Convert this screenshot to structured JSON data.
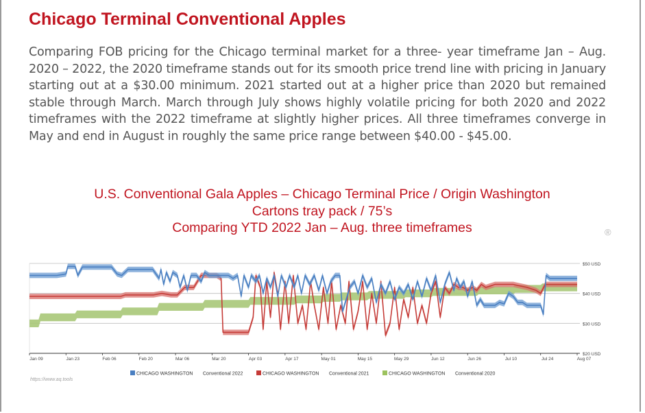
{
  "article": {
    "heading": "Chicago Terminal Conventional Apples",
    "paragraph": "Comparing FOB pricing for the Chicago terminal market for a three- year timeframe Jan – Aug. 2020 – 2022, the 2020 timeframe stands out for its smooth price trend line with pricing in January starting out at a $30.00 minimum.  2021 started out at a higher price than 2020 but remained stable through March.   March through July shows highly volatile pricing for both 2020 and 2022 timeframes with the 2022 timeframe at slightly higher prices.  All three timeframes converge in May and end in August in roughly the same price range between $40.00 - $45.00."
  },
  "chart": {
    "title_lines": [
      "U.S. Conventional Gala Apples – Chicago Terminal Price / Origin Washington",
      "Cartons tray pack / 75’s",
      "Comparing YTD 2022 Jan – Aug. three timeframes"
    ],
    "registered_mark": "®",
    "source": "https://www.aq.tools",
    "colors": {
      "conventional_2022": "#4a7fc1",
      "conventional_2022_fill": "#6b9bd2",
      "conventional_2021": "#c53b37",
      "conventional_2021_fill": "#d9706c",
      "conventional_2020": "#9cc25e",
      "conventional_2020_fill": "#a9c878"
    }
  },
  "chart_data": {
    "type": "area",
    "title": "U.S. Conventional Gala Apples – Chicago Terminal Price / Origin Washington",
    "subtitle": "Cartons tray pack / 75’s — Comparing YTD 2022 Jan – Aug. three timeframes",
    "x_ticks": [
      "Jan 09",
      "Jan 23",
      "Feb 06",
      "Feb 20",
      "Mar 06",
      "Mar 20",
      "Apr 03",
      "Apr 17",
      "May 01",
      "May 15",
      "May 29",
      "Jun 12",
      "Jun 26",
      "Jul 10",
      "Jul 24",
      "Aug 07"
    ],
    "y_ticks": [
      "$20 USD",
      "$30 USD",
      "$40 USD",
      "$50 USD"
    ],
    "ylim": [
      20,
      50
    ],
    "y_axis_side": "right",
    "grid": true,
    "legend_position": "bottom",
    "series": [
      {
        "key": "conventional_2022",
        "name": "CHICAGO WASHINGTON Conventional 2022",
        "legend_origin": "CHICAGO WASHINGTON",
        "legend_name": "Conventional 2022",
        "points": [
          [
            0,
            46
          ],
          [
            0.5,
            46
          ],
          [
            3,
            46
          ],
          [
            4,
            46.5
          ],
          [
            4.2,
            49
          ],
          [
            5,
            49
          ],
          [
            5.3,
            46
          ],
          [
            5.8,
            48.8
          ],
          [
            9,
            48.8
          ],
          [
            9.6,
            46.5
          ],
          [
            10.1,
            46
          ],
          [
            10.8,
            48
          ],
          [
            13.5,
            48
          ],
          [
            14.2,
            45
          ],
          [
            14.4,
            48
          ],
          [
            14.7,
            43
          ],
          [
            15,
            47
          ],
          [
            15.4,
            44
          ],
          [
            15.7,
            47
          ],
          [
            16.2,
            46
          ],
          [
            16.5,
            42
          ],
          [
            16.9,
            46
          ],
          [
            17.3,
            41
          ],
          [
            17.7,
            46
          ],
          [
            18.3,
            46
          ],
          [
            18.8,
            44
          ],
          [
            19.2,
            47
          ],
          [
            19.7,
            46
          ],
          [
            20.5,
            46
          ],
          [
            21.1,
            46
          ],
          [
            21.8,
            46
          ],
          [
            22.3,
            45
          ],
          [
            22.8,
            46
          ],
          [
            23.2,
            39
          ],
          [
            23.5,
            46
          ],
          [
            24,
            42
          ],
          [
            24.3,
            46
          ],
          [
            24.8,
            44
          ],
          [
            25.2,
            46
          ],
          [
            25.6,
            40
          ],
          [
            26,
            45
          ],
          [
            26.4,
            42
          ],
          [
            26.8,
            46
          ],
          [
            27.2,
            39
          ],
          [
            27.6,
            46
          ],
          [
            28.1,
            42
          ],
          [
            28.5,
            46
          ],
          [
            29,
            42
          ],
          [
            29.4,
            46
          ],
          [
            29.8,
            40
          ],
          [
            30.2,
            46
          ],
          [
            30.7,
            43
          ],
          [
            31.2,
            46
          ],
          [
            31.7,
            41
          ],
          [
            32.1,
            46
          ],
          [
            32.6,
            40
          ],
          [
            33,
            44
          ],
          [
            33.5,
            46
          ],
          [
            34,
            46
          ],
          [
            34.3,
            34
          ],
          [
            34.7,
            38
          ],
          [
            35.1,
            42
          ],
          [
            35.6,
            44
          ],
          [
            36,
            40
          ],
          [
            36.5,
            46
          ],
          [
            37,
            42
          ],
          [
            37.5,
            45
          ],
          [
            38,
            37
          ],
          [
            38.5,
            43
          ],
          [
            39,
            40
          ],
          [
            39.5,
            44
          ],
          [
            40,
            38
          ],
          [
            40.5,
            42
          ],
          [
            41,
            40
          ],
          [
            41.5,
            43
          ],
          [
            42,
            38
          ],
          [
            42.5,
            44
          ],
          [
            43,
            39
          ],
          [
            43.5,
            45
          ],
          [
            44,
            41
          ],
          [
            44.5,
            46
          ],
          [
            45,
            37
          ],
          [
            45.5,
            43
          ],
          [
            46,
            47
          ],
          [
            46.5,
            41
          ],
          [
            46.8,
            45
          ],
          [
            47.2,
            42
          ],
          [
            47.6,
            44
          ],
          [
            48,
            39
          ],
          [
            48.5,
            44
          ],
          [
            49,
            36
          ],
          [
            49.4,
            38
          ],
          [
            49.8,
            36
          ],
          [
            50.3,
            36
          ],
          [
            51,
            36
          ],
          [
            51.5,
            37
          ],
          [
            52,
            36.5
          ],
          [
            52.5,
            40
          ],
          [
            53,
            39
          ],
          [
            53.5,
            37
          ],
          [
            54,
            37
          ],
          [
            54.5,
            36
          ],
          [
            56,
            36
          ],
          [
            56.3,
            33
          ],
          [
            56.6,
            46
          ],
          [
            57,
            45
          ],
          [
            60,
            45
          ]
        ]
      },
      {
        "key": "conventional_2021",
        "name": "CHICAGO WASHINGTON Conventional 2021",
        "legend_origin": "CHICAGO WASHINGTON",
        "legend_name": "Conventional 2021",
        "points": [
          [
            0,
            39
          ],
          [
            1,
            39
          ],
          [
            4,
            39
          ],
          [
            9,
            39
          ],
          [
            10,
            39
          ],
          [
            10.5,
            39.5
          ],
          [
            13.6,
            39.5
          ],
          [
            14.5,
            40
          ],
          [
            15.5,
            39.5
          ],
          [
            16.2,
            39.5
          ],
          [
            17,
            42
          ],
          [
            18,
            42
          ],
          [
            18.8,
            46
          ],
          [
            20.5,
            46
          ],
          [
            21,
            45
          ],
          [
            21.2,
            27
          ],
          [
            22.5,
            27
          ],
          [
            23.5,
            27
          ],
          [
            24,
            27
          ],
          [
            24.5,
            32
          ],
          [
            24.8,
            46
          ],
          [
            25.3,
            42
          ],
          [
            25.6,
            28
          ],
          [
            26,
            44
          ],
          [
            26.4,
            32
          ],
          [
            26.8,
            47
          ],
          [
            27.2,
            40
          ],
          [
            27.5,
            28
          ],
          [
            28,
            44
          ],
          [
            28.4,
            30
          ],
          [
            28.9,
            46
          ],
          [
            29.4,
            30
          ],
          [
            29.9,
            36
          ],
          [
            30.3,
            28
          ],
          [
            30.8,
            44
          ],
          [
            31.2,
            36
          ],
          [
            31.7,
            28
          ],
          [
            32.2,
            42
          ],
          [
            32.7,
            30
          ],
          [
            33.1,
            44
          ],
          [
            33.6,
            28
          ],
          [
            34.1,
            36
          ],
          [
            34.6,
            30
          ],
          [
            35,
            44
          ],
          [
            35.5,
            28
          ],
          [
            36,
            34
          ],
          [
            36.5,
            44
          ],
          [
            37,
            28
          ],
          [
            37.5,
            40
          ],
          [
            38,
            30
          ],
          [
            38.5,
            44
          ],
          [
            39,
            26
          ],
          [
            39.5,
            30
          ],
          [
            40,
            42
          ],
          [
            40.5,
            28
          ],
          [
            41,
            38
          ],
          [
            41.5,
            32
          ],
          [
            42,
            42
          ],
          [
            42.5,
            30
          ],
          [
            43,
            36
          ],
          [
            43.5,
            30
          ],
          [
            44,
            40
          ],
          [
            44.5,
            44
          ],
          [
            45,
            32
          ],
          [
            45.5,
            42
          ],
          [
            46,
            40
          ],
          [
            46.5,
            43
          ],
          [
            47,
            42
          ],
          [
            47.5,
            42
          ],
          [
            48,
            41
          ],
          [
            48.5,
            42
          ],
          [
            49,
            41
          ],
          [
            49.5,
            43
          ],
          [
            50,
            42
          ],
          [
            50.5,
            42.5
          ],
          [
            51,
            43
          ],
          [
            53,
            43
          ],
          [
            54.5,
            42
          ],
          [
            55.5,
            41
          ],
          [
            56,
            40
          ],
          [
            56.5,
            43
          ],
          [
            57,
            43
          ],
          [
            60,
            43
          ]
        ]
      },
      {
        "key": "conventional_2020",
        "name": "CHICAGO WASHINGTON Conventional 2020",
        "legend_origin": "CHICAGO WASHINGTON",
        "legend_name": "Conventional 2020",
        "points": [
          [
            0,
            30
          ],
          [
            1,
            30
          ],
          [
            1.2,
            32
          ],
          [
            5,
            32
          ],
          [
            5.2,
            33
          ],
          [
            10,
            33
          ],
          [
            10.2,
            34
          ],
          [
            14,
            34
          ],
          [
            14.2,
            35.5
          ],
          [
            19,
            35.5
          ],
          [
            19.2,
            36.5
          ],
          [
            24,
            36.5
          ],
          [
            24.2,
            37.5
          ],
          [
            29,
            37.5
          ],
          [
            29.2,
            38
          ],
          [
            32,
            38
          ],
          [
            32.2,
            38.5
          ],
          [
            34,
            38.5
          ],
          [
            34.2,
            39
          ],
          [
            37,
            39
          ],
          [
            37.2,
            39.5
          ],
          [
            41,
            39.5
          ],
          [
            41.2,
            40
          ],
          [
            44,
            40
          ],
          [
            44.2,
            40.5
          ],
          [
            49,
            40.5
          ],
          [
            49.2,
            41
          ],
          [
            53,
            41
          ],
          [
            53.2,
            41.5
          ],
          [
            56,
            41.5
          ],
          [
            56.2,
            42
          ],
          [
            60,
            42
          ]
        ]
      }
    ]
  }
}
